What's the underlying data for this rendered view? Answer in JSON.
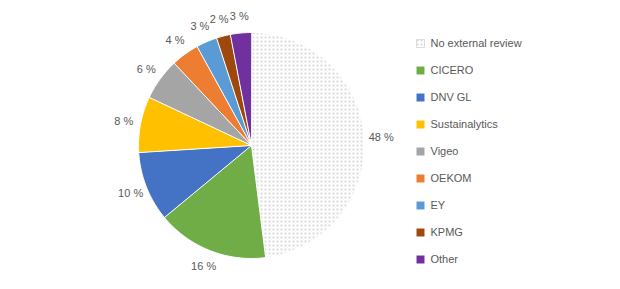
{
  "chart_data": {
    "type": "pie",
    "categories": [
      "No external review",
      "CICERO",
      "DNV GL",
      "Sustainalytics",
      "Vigeo",
      "OEKOM",
      "EY",
      "KPMG",
      "Other"
    ],
    "values": [
      48,
      16,
      10,
      8,
      6,
      4,
      3,
      2,
      3
    ],
    "value_labels": [
      "48 %",
      "16 %",
      "10 %",
      "8 %",
      "6 %",
      "4 %",
      "3 %",
      "2 %",
      "3 %"
    ],
    "colors": [
      "#ffffff",
      "#70ad47",
      "#4472c4",
      "#ffc000",
      "#a5a5a5",
      "#ed7d31",
      "#5b9bd5",
      "#9e480e",
      "#7030a0"
    ],
    "data_labels": true,
    "legend": "right"
  }
}
